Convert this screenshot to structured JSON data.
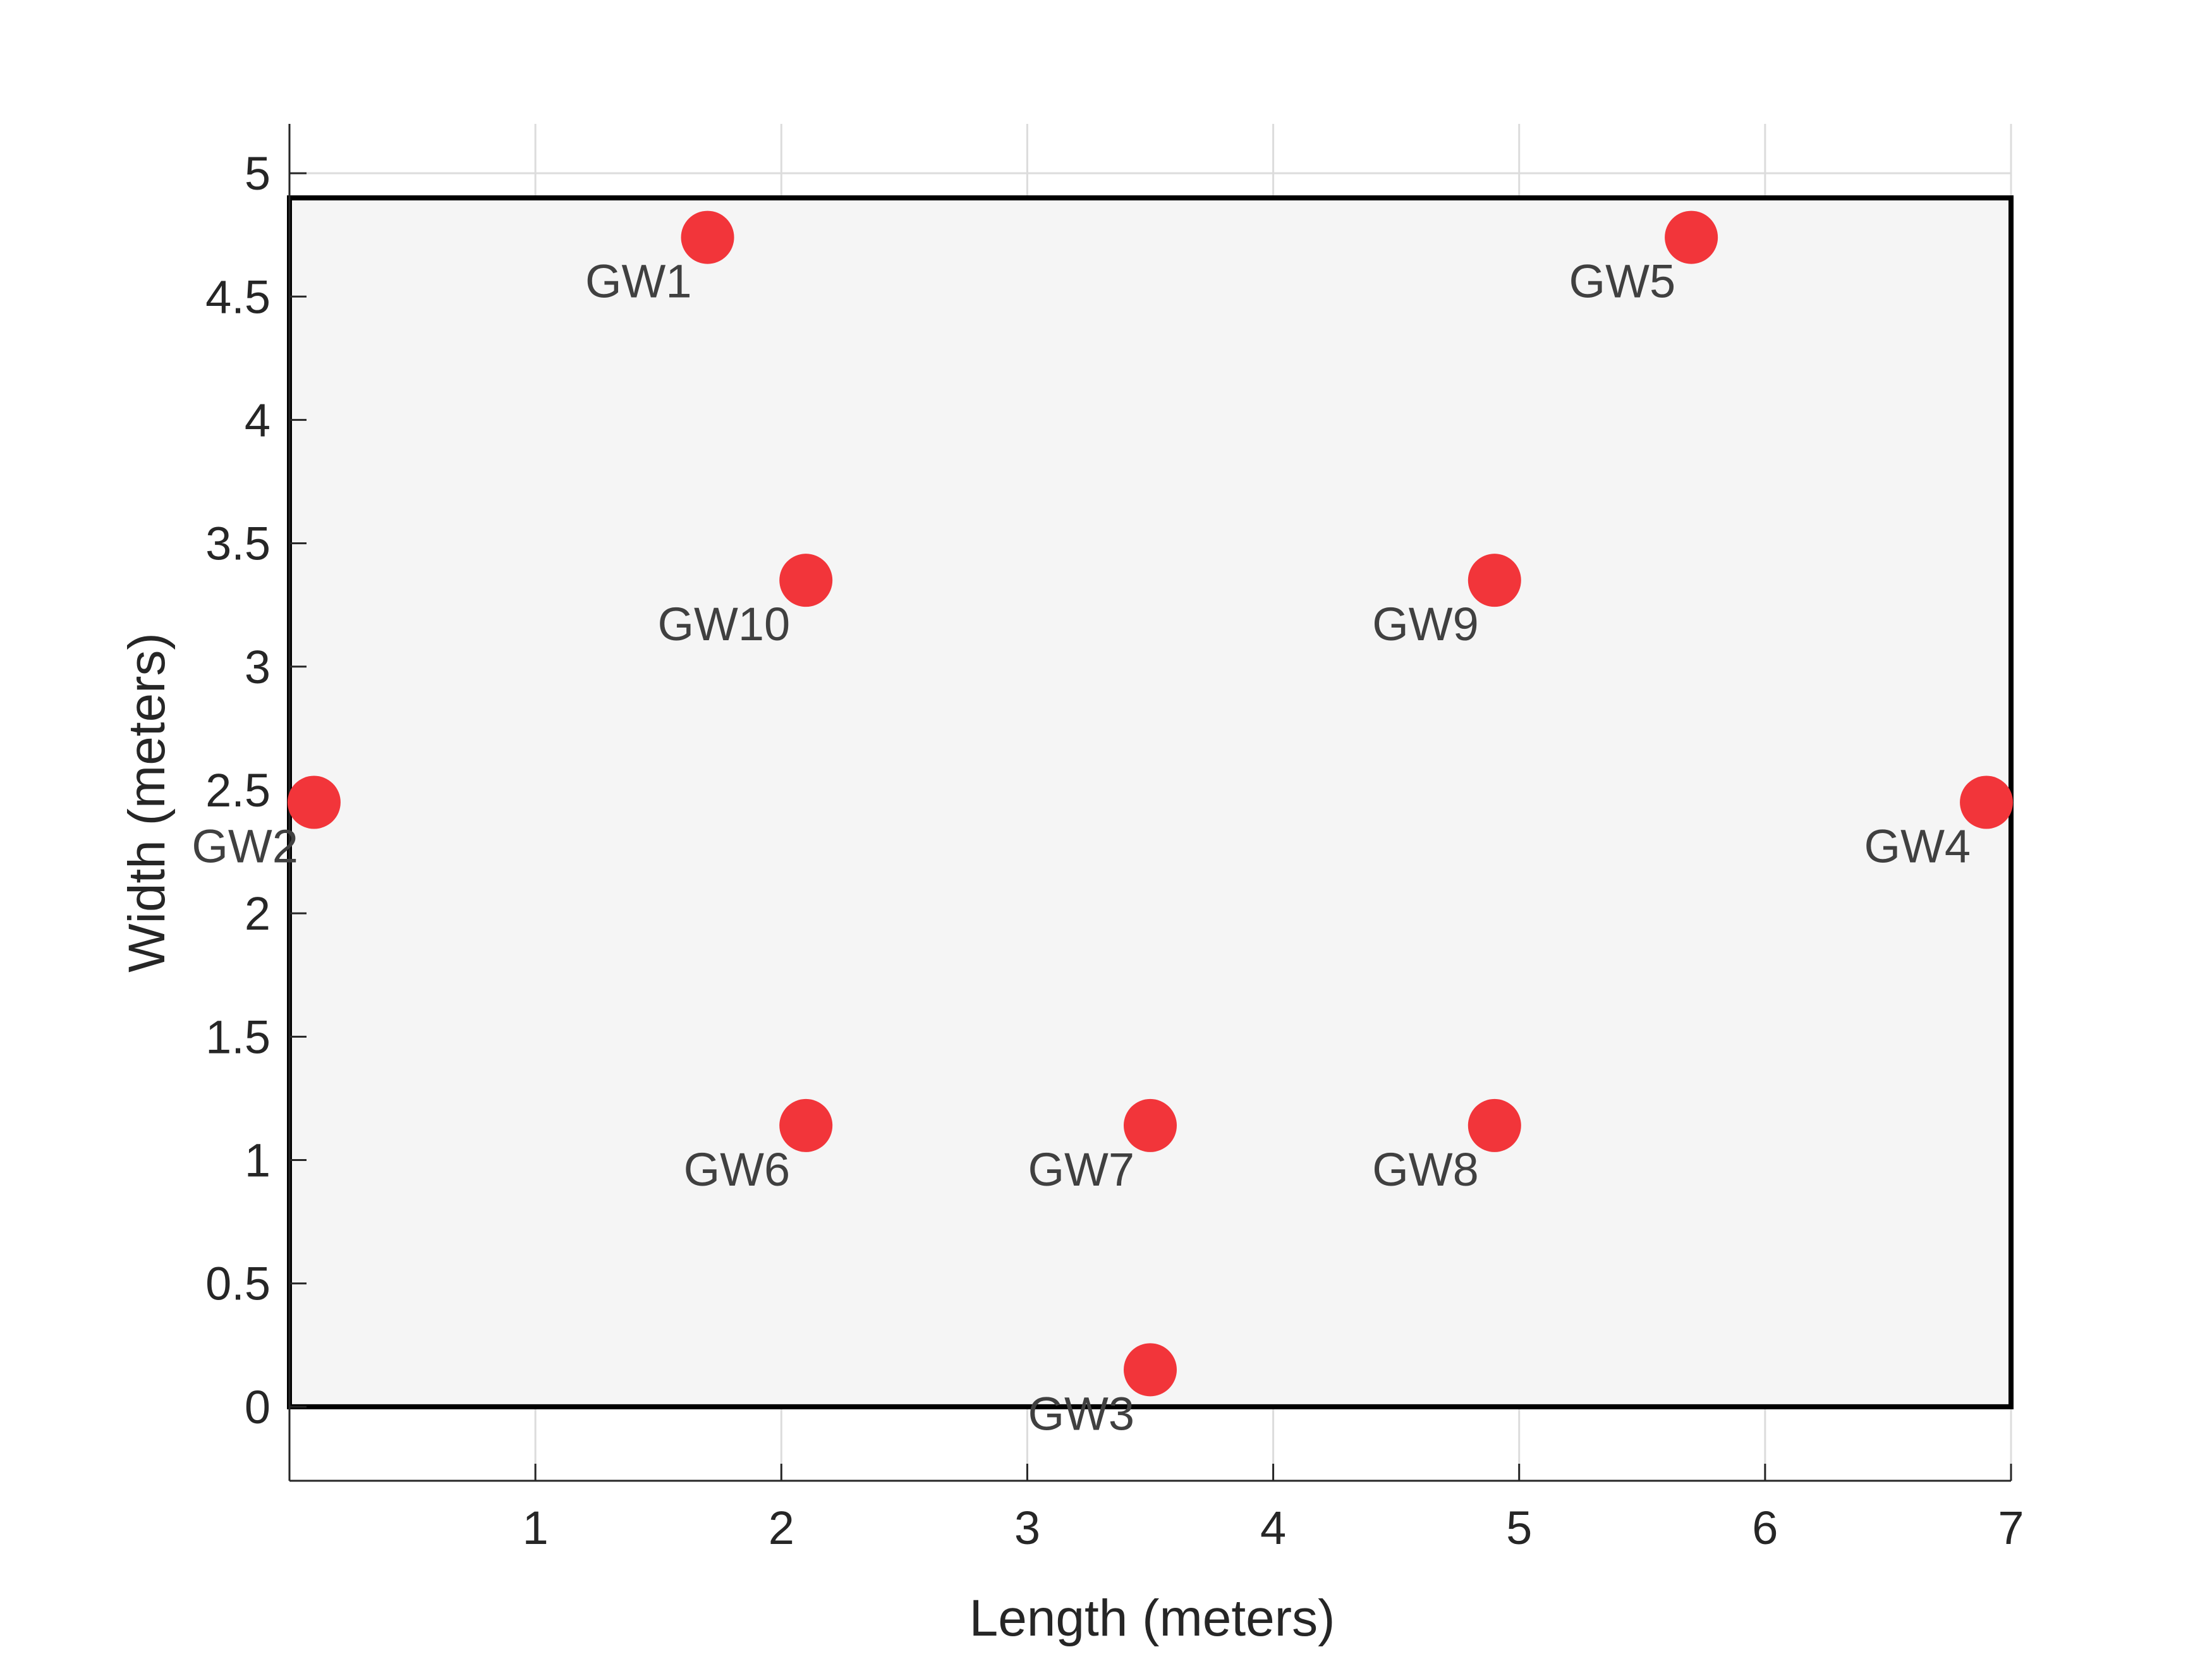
{
  "chart_data": {
    "type": "scatter",
    "xlabel": "Length (meters)",
    "ylabel": "Width (meters)",
    "xlim": [
      0,
      7
    ],
    "ylim": [
      -0.3,
      5.2
    ],
    "xticks": [
      1,
      2,
      3,
      4,
      5,
      6,
      7
    ],
    "xtick_labels": [
      "1",
      "2",
      "3",
      "4",
      "5",
      "6",
      "7"
    ],
    "yticks": [
      0,
      0.5,
      1,
      1.5,
      2,
      2.5,
      3,
      3.5,
      4,
      4.5,
      5
    ],
    "ytick_labels": [
      "0",
      "0.5",
      "1",
      "1.5",
      "2",
      "2.5",
      "3",
      "3.5",
      "4",
      "4.5",
      "5"
    ],
    "grid": true,
    "room": {
      "x": [
        0,
        7
      ],
      "y": [
        0,
        4.9
      ]
    },
    "marker_color": "#f2353a",
    "room_fill": "#f5f5f5",
    "points": [
      {
        "label": "GW1",
        "x": 1.7,
        "y": 4.74
      },
      {
        "label": "GW2",
        "x": 0.1,
        "y": 2.45
      },
      {
        "label": "GW3",
        "x": 3.5,
        "y": 0.15
      },
      {
        "label": "GW4",
        "x": 6.9,
        "y": 2.45
      },
      {
        "label": "GW5",
        "x": 5.7,
        "y": 4.74
      },
      {
        "label": "GW6",
        "x": 2.1,
        "y": 1.14
      },
      {
        "label": "GW7",
        "x": 3.5,
        "y": 1.14
      },
      {
        "label": "GW8",
        "x": 4.9,
        "y": 1.14
      },
      {
        "label": "GW9",
        "x": 4.9,
        "y": 3.35
      },
      {
        "label": "GW10",
        "x": 2.1,
        "y": 3.35
      }
    ]
  }
}
